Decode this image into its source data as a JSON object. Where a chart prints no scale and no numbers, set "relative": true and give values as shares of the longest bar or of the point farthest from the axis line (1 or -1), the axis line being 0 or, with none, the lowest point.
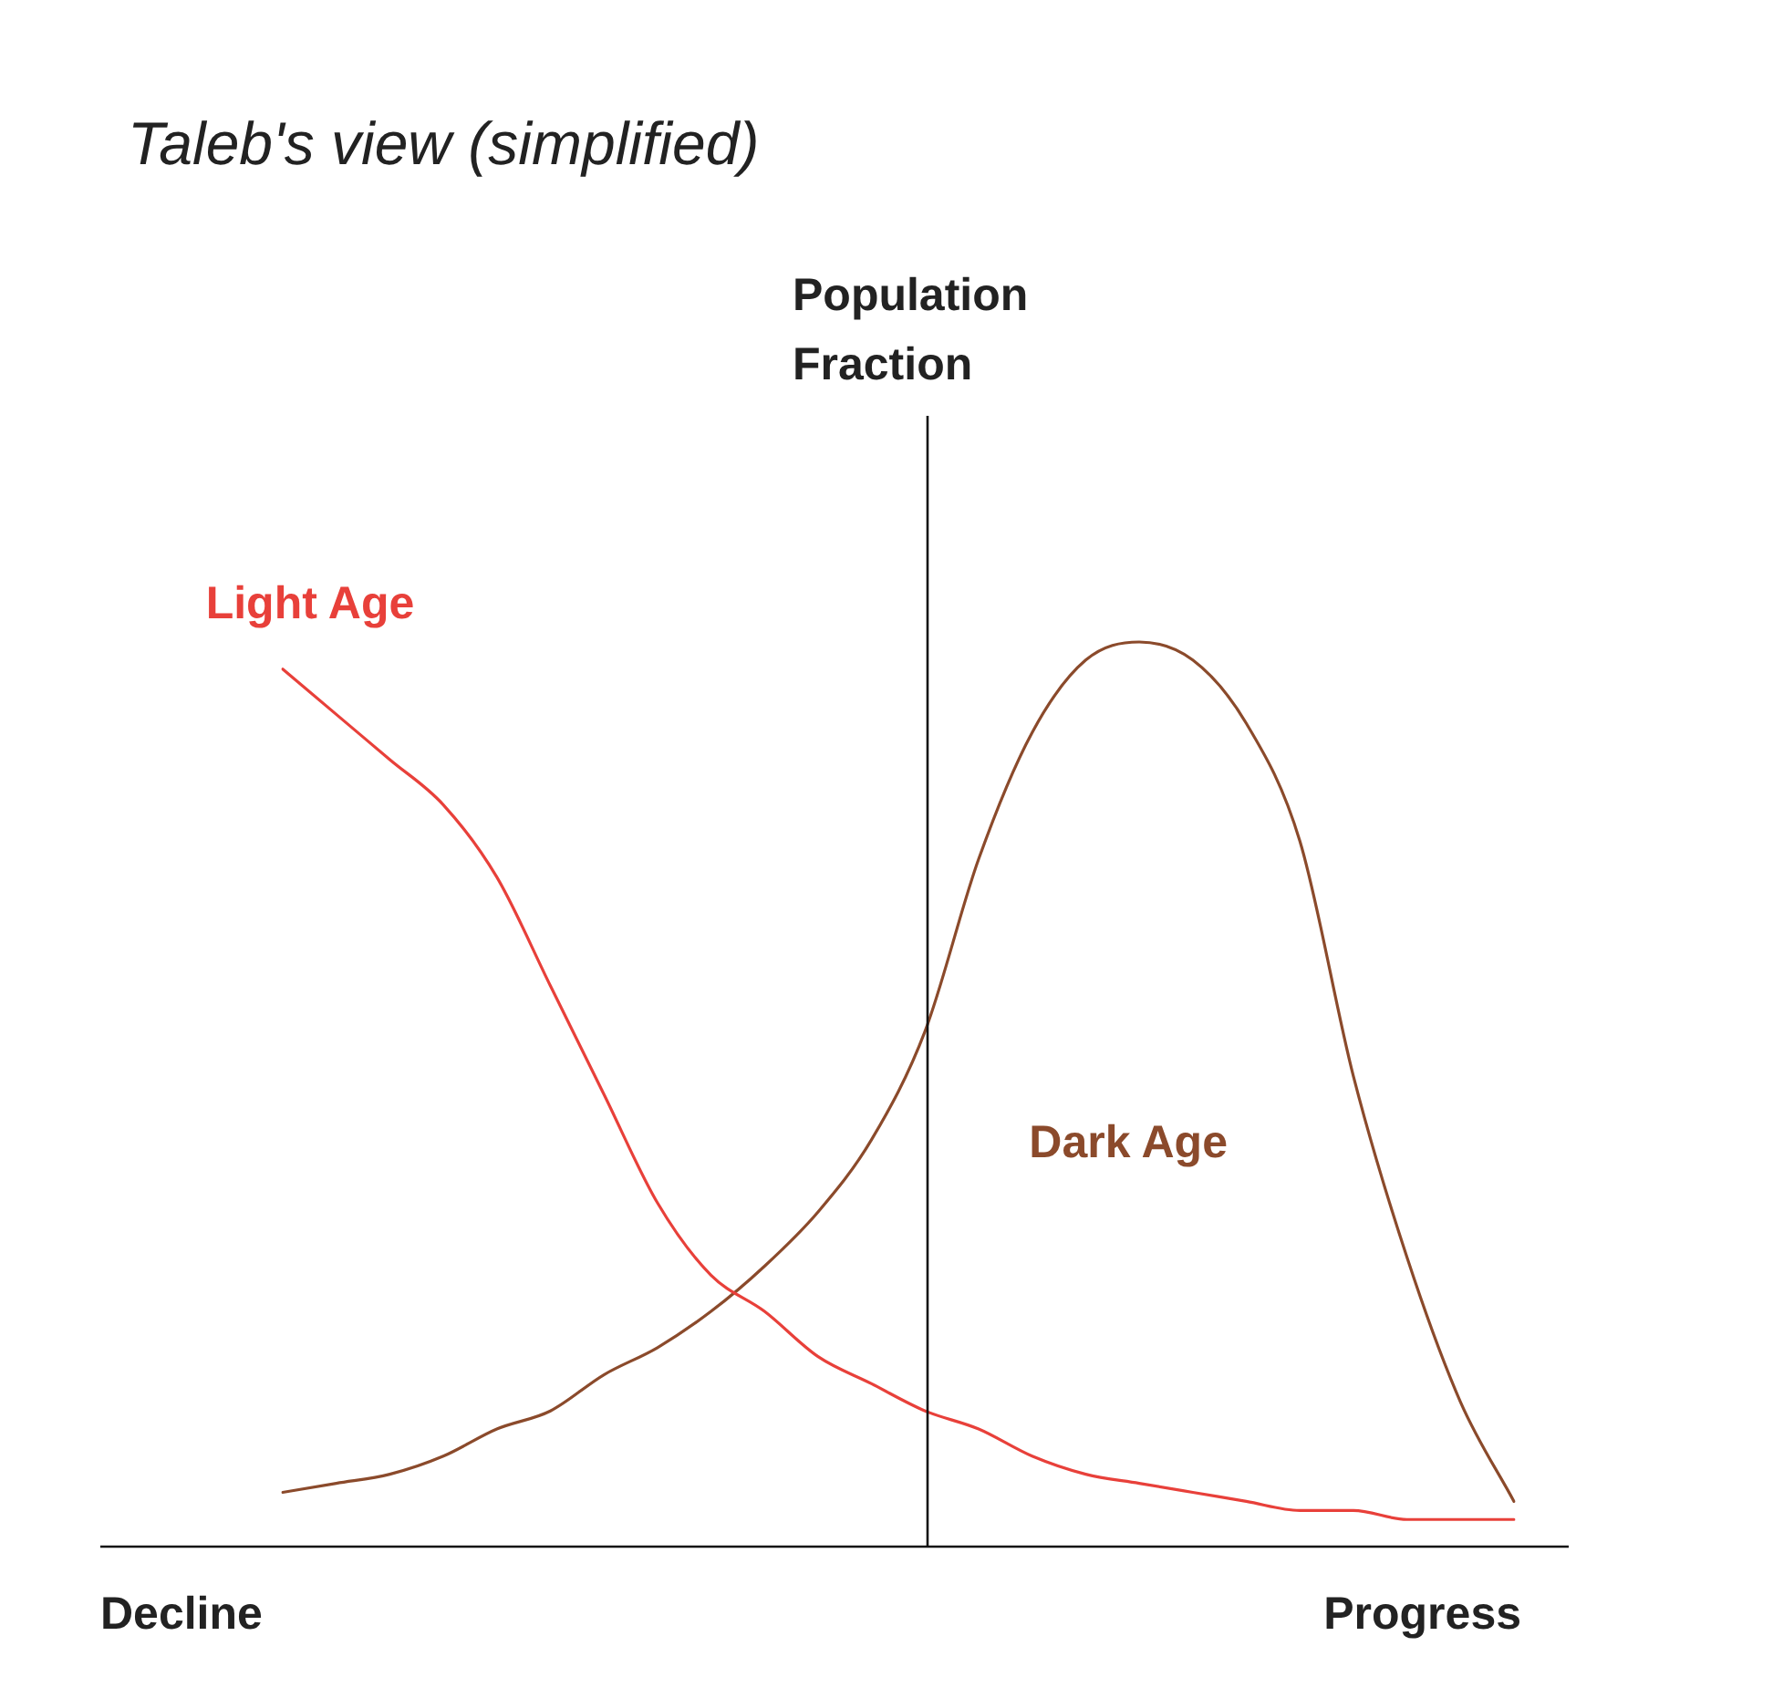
{
  "chart_data": {
    "type": "line",
    "title": "Taleb's view (simplified)",
    "relative": true,
    "legend": false,
    "marker": "none",
    "line_style": "solid",
    "annotations": [
      "Population Fraction",
      "Decline",
      "Progress"
    ],
    "categories": [
      null,
      null,
      null,
      null,
      null,
      null,
      null,
      null,
      null,
      null,
      null,
      null,
      null,
      null,
      null,
      null,
      null,
      null,
      null,
      null,
      null,
      null,
      null,
      null
    ],
    "series": [
      {
        "name": "Light Age",
        "color": "#e8403a",
        "values": [
          0.97,
          0.92,
          0.87,
          0.82,
          0.74,
          0.62,
          0.5,
          0.38,
          0.3,
          0.26,
          0.21,
          0.18,
          0.15,
          0.13,
          0.1,
          0.08,
          0.07,
          0.06,
          0.05,
          0.04,
          0.04,
          0.03,
          0.03,
          0.03
        ]
      },
      {
        "name": "Dark Age",
        "color": "#8b4a2b",
        "values": [
          0.06,
          0.07,
          0.08,
          0.1,
          0.13,
          0.15,
          0.19,
          0.22,
          0.26,
          0.31,
          0.37,
          0.45,
          0.57,
          0.76,
          0.9,
          0.98,
          1,
          0.98,
          0.91,
          0.78,
          0.52,
          0.32,
          0.16,
          0.05
        ]
      }
    ]
  }
}
